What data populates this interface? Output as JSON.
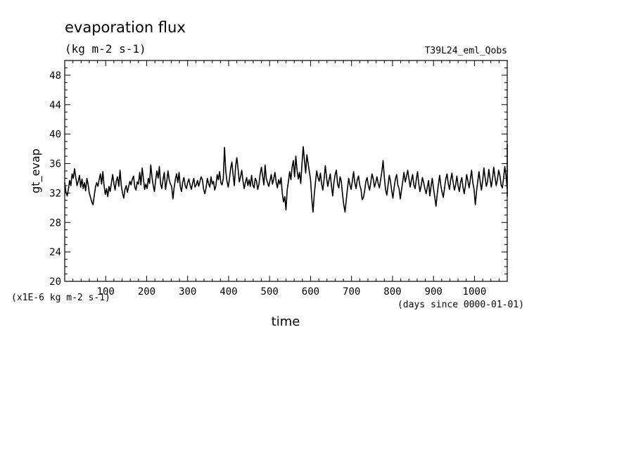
{
  "chart_data": {
    "type": "line",
    "title": "evaporation flux",
    "subtitle": "(kg m-2 s-1)",
    "run_label": "T39L24_eml_Qobs",
    "xlabel": "time",
    "x_units": "(days since 0000-01-01)",
    "ylabel": "gt_evap",
    "y_units": "(x1E-6 kg m-2 s-1)",
    "xlim": [
      0,
      1080
    ],
    "ylim": [
      20,
      50
    ],
    "x_ticks": [
      100,
      200,
      300,
      400,
      500,
      600,
      700,
      800,
      900,
      1000
    ],
    "y_ticks": [
      20,
      24,
      28,
      32,
      36,
      40,
      44,
      48
    ],
    "grid": false,
    "series": [
      {
        "x_start": 0,
        "x_step": 3,
        "values": [
          33.4,
          32.1,
          31.6,
          32.5,
          33.7,
          33.0,
          34.6,
          34.0,
          35.3,
          34.1,
          33.0,
          33.6,
          34.4,
          32.8,
          33.9,
          32.6,
          33.4,
          32.3,
          34.0,
          33.2,
          32.0,
          31.4,
          30.8,
          30.4,
          31.6,
          32.8,
          33.4,
          32.9,
          33.8,
          34.6,
          33.2,
          34.9,
          33.0,
          31.8,
          32.6,
          31.5,
          32.9,
          32.2,
          33.4,
          34.5,
          33.3,
          32.4,
          33.7,
          34.2,
          32.9,
          35.1,
          33.0,
          32.0,
          31.3,
          32.5,
          33.0,
          32.1,
          32.9,
          33.6,
          33.1,
          33.9,
          34.3,
          32.8,
          32.4,
          33.5,
          33.2,
          34.8,
          33.1,
          35.4,
          34.0,
          32.5,
          33.2,
          32.6,
          34.0,
          33.3,
          35.8,
          34.1,
          33.0,
          32.2,
          33.8,
          35.0,
          34.0,
          35.6,
          33.2,
          32.6,
          33.9,
          34.8,
          32.5,
          33.6,
          35.0,
          33.8,
          33.2,
          32.9,
          31.2,
          32.7,
          33.9,
          34.6,
          33.4,
          34.8,
          32.9,
          32.2,
          33.5,
          34.1,
          33.0,
          32.6,
          33.4,
          33.9,
          33.1,
          32.5,
          33.3,
          34.0,
          32.8,
          33.1,
          33.7,
          32.9,
          33.6,
          34.2,
          33.8,
          32.5,
          31.9,
          32.7,
          34.0,
          33.3,
          32.8,
          34.2,
          33.2,
          33.6,
          32.4,
          33.0,
          34.5,
          33.8,
          34.9,
          33.4,
          33.1,
          34.0,
          38.2,
          35.0,
          33.6,
          32.8,
          33.9,
          35.4,
          36.2,
          34.4,
          33.0,
          35.6,
          36.8,
          35.3,
          33.5,
          34.2,
          35.1,
          33.7,
          32.6,
          33.4,
          34.1,
          33.0,
          33.8,
          32.9,
          34.4,
          33.1,
          32.7,
          34.0,
          33.6,
          32.5,
          33.2,
          34.6,
          35.5,
          34.3,
          33.1,
          35.8,
          34.0,
          33.4,
          32.9,
          33.7,
          34.5,
          33.2,
          33.9,
          34.8,
          33.5,
          32.7,
          33.8,
          33.2,
          34.1,
          31.9,
          30.8,
          31.5,
          29.7,
          32.4,
          33.6,
          34.9,
          33.8,
          35.5,
          36.4,
          34.2,
          37.0,
          35.1,
          33.9,
          34.8,
          33.3,
          35.9,
          38.3,
          36.5,
          34.7,
          37.2,
          36.0,
          34.9,
          33.8,
          31.2,
          29.4,
          31.8,
          33.5,
          35.0,
          34.1,
          33.6,
          34.7,
          33.2,
          32.4,
          33.9,
          35.7,
          34.1,
          32.9,
          33.8,
          34.6,
          33.0,
          31.6,
          33.4,
          34.5,
          35.1,
          33.2,
          32.7,
          34.2,
          33.6,
          31.8,
          30.4,
          29.4,
          31.0,
          32.6,
          34.0,
          33.1,
          32.5,
          33.7,
          34.9,
          33.4,
          32.6,
          33.8,
          34.3,
          33.1,
          32.5,
          31.1,
          31.4,
          32.3,
          33.6,
          34.1,
          33.0,
          32.4,
          33.5,
          34.6,
          33.9,
          32.8,
          33.4,
          34.2,
          33.3,
          32.7,
          33.8,
          34.9,
          36.4,
          34.1,
          32.5,
          31.7,
          33.0,
          34.4,
          33.6,
          32.3,
          31.3,
          32.8,
          33.9,
          34.5,
          33.1,
          32.6,
          31.2,
          32.4,
          33.6,
          34.8,
          33.5,
          34.2,
          35.1,
          34.0,
          32.8,
          33.7,
          34.5,
          33.1,
          32.6,
          33.8,
          34.9,
          33.3,
          32.2,
          33.0,
          34.1,
          33.4,
          32.6,
          31.9,
          32.8,
          33.7,
          31.6,
          32.9,
          34.0,
          32.6,
          31.5,
          30.2,
          31.8,
          33.2,
          34.4,
          33.0,
          32.1,
          31.4,
          32.7,
          33.9,
          34.6,
          33.3,
          32.5,
          33.8,
          34.7,
          33.4,
          32.4,
          33.1,
          34.3,
          33.0,
          32.2,
          33.4,
          34.1,
          32.8,
          31.9,
          33.0,
          34.5,
          33.6,
          32.7,
          33.9,
          35.1,
          33.4,
          32.5,
          30.4,
          32.2,
          33.6,
          34.9,
          33.5,
          32.4,
          33.7,
          35.4,
          34.1,
          32.9,
          33.6,
          35.2,
          34.0,
          32.8,
          33.9,
          35.5,
          34.2,
          33.0,
          33.8,
          35.1,
          34.4,
          33.1,
          32.7,
          34.0,
          35.6,
          34.3,
          32.5,
          33.3,
          36.1,
          38.6,
          35.0,
          33.2,
          31.5,
          32.9,
          34.2,
          35.0,
          33.7,
          32.8,
          34.5,
          33.1,
          32.4
        ]
      }
    ]
  }
}
